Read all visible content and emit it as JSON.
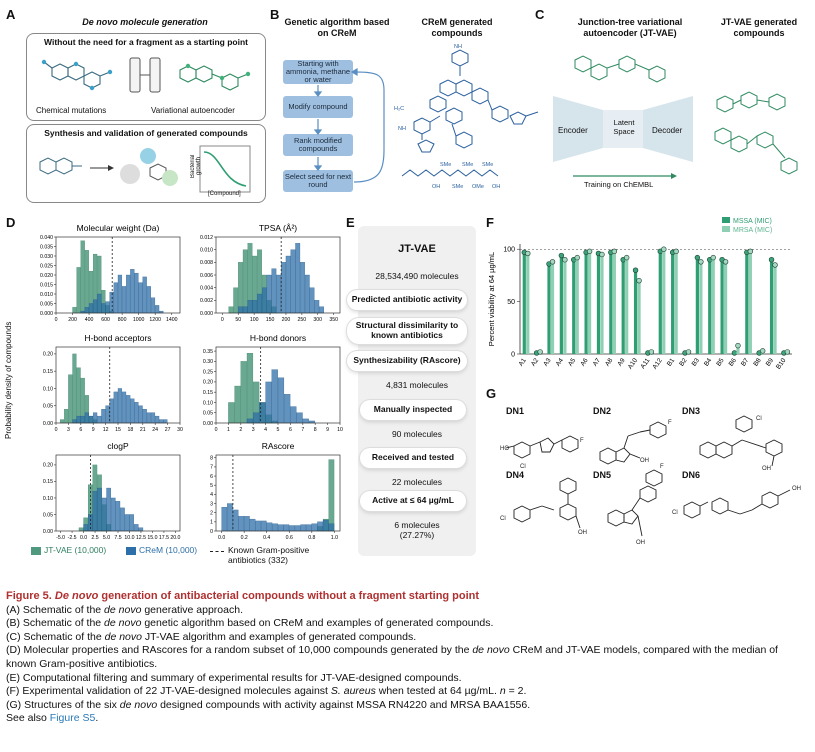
{
  "panelA": {
    "label": "A",
    "title": "De novo molecule generation",
    "box1_title": "Without the need for a fragment as a starting point",
    "chem_mut": "Chemical mutations",
    "vae": "Variational autoencoder",
    "box2_title": "Synthesis and validation of generated compounds",
    "growth_y": "Bacterial growth",
    "growth_x": "[Compound]"
  },
  "panelB": {
    "label": "B",
    "title": "Genetic algorithm based on CReM",
    "steps": [
      "Starting with ammonia, methane or water",
      "Modify compound",
      "Rank modified compounds",
      "Select seed for next round"
    ],
    "gen_title": "CReM generated compounds"
  },
  "panelC": {
    "label": "C",
    "title": "Junction-tree variational autoencoder (JT-VAE)",
    "gen_title": "JT-VAE generated compounds",
    "encoder": "Encoder",
    "latent": "Latent Space",
    "decoder": "Decoder",
    "training": "Training on ChEMBL"
  },
  "panelD": {
    "label": "D",
    "ylabel": "Probability density of compounds",
    "legend": {
      "jtvae": "JT-VAE (10,000)",
      "crem": "CReM (10,000)",
      "known": "Known Gram-positive antibiotics (332)"
    }
  },
  "panelE": {
    "label": "E",
    "title": "JT-VAE",
    "items": [
      {
        "kind": "count",
        "text": "28,534,490 molecules"
      },
      {
        "kind": "step",
        "text": "Predicted antibiotic activity"
      },
      {
        "kind": "step",
        "text": "Structural dissimilarity to known antibiotics"
      },
      {
        "kind": "step",
        "text": "Synthesizability (RAscore)"
      },
      {
        "kind": "count",
        "text": "4,831 molecules"
      },
      {
        "kind": "step",
        "text": "Manually inspected"
      },
      {
        "kind": "count",
        "text": "90 molecules"
      },
      {
        "kind": "step",
        "text": "Received and tested"
      },
      {
        "kind": "count",
        "text": "22 molecules"
      },
      {
        "kind": "step",
        "text": "Active at ≤ 64 µg/mL"
      },
      {
        "kind": "count",
        "text": "6 molecules"
      },
      {
        "kind": "count",
        "text": "(27.27%)"
      }
    ]
  },
  "panelF": {
    "label": "F"
  },
  "panelG": {
    "label": "G",
    "names": [
      "DN1",
      "DN2",
      "DN3",
      "DN4",
      "DN5",
      "DN6"
    ]
  },
  "chart_data": [
    {
      "type": "histogram",
      "title": "Molecular weight (Da)",
      "xlim": [
        0,
        1500
      ],
      "ylim": [
        0,
        0.04
      ],
      "xticks": [
        "0",
        "200",
        "400",
        "600",
        "800",
        "1000",
        "1200",
        "1400"
      ],
      "yticks": [
        "0.000",
        "0.005",
        "0.010",
        "0.015",
        "0.020",
        "0.025",
        "0.030",
        "0.035",
        "0.040"
      ],
      "bin_edges": [
        200,
        250,
        300,
        350,
        400,
        450,
        500,
        550,
        600,
        650,
        700,
        750,
        800,
        850,
        900,
        950,
        1000,
        1050,
        1100,
        1150,
        1200,
        1250,
        1300
      ],
      "jtvae": [
        0.003,
        0.024,
        0.038,
        0.033,
        0.022,
        0.031,
        0.03,
        0.012,
        0.004,
        0.001,
        0,
        0,
        0,
        0,
        0,
        0,
        0,
        0,
        0,
        0,
        0,
        0
      ],
      "crem": [
        0,
        0,
        0.001,
        0.003,
        0.005,
        0.007,
        0.01,
        0.005,
        0.006,
        0.011,
        0.016,
        0.02,
        0.014,
        0.02,
        0.023,
        0.021,
        0.016,
        0.019,
        0.014,
        0.008,
        0.004,
        0.001
      ],
      "known_median": 680
    },
    {
      "type": "histogram",
      "title": "TPSA (Å²)",
      "xlim": [
        -20,
        370
      ],
      "ylim": [
        0,
        0.012
      ],
      "xticks": [
        "0",
        "50",
        "100",
        "150",
        "200",
        "250",
        "300",
        "350"
      ],
      "yticks": [
        "0.000",
        "0.002",
        "0.004",
        "0.006",
        "0.008",
        "0.010",
        "0.012"
      ],
      "bin_edges": [
        20,
        35,
        50,
        65,
        80,
        95,
        110,
        125,
        140,
        155,
        170,
        185,
        200,
        215,
        230,
        245,
        260,
        275,
        290,
        305,
        320
      ],
      "jtvae": [
        0.001,
        0.004,
        0.008,
        0.01,
        0.011,
        0.009,
        0.01,
        0.006,
        0.002,
        0.001,
        0,
        0,
        0,
        0,
        0,
        0,
        0,
        0,
        0,
        0
      ],
      "crem": [
        0,
        0,
        0.001,
        0.001,
        0.002,
        0.002,
        0.003,
        0.004,
        0.006,
        0.007,
        0.006,
        0.008,
        0.009,
        0.01,
        0.011,
        0.008,
        0.006,
        0.004,
        0.002,
        0.001
      ],
      "known_median": 185
    },
    {
      "type": "histogram",
      "title": "H-bond acceptors",
      "xlim": [
        0,
        30
      ],
      "ylim": [
        0,
        0.22
      ],
      "xticks": [
        "0",
        "3",
        "6",
        "9",
        "12",
        "15",
        "18",
        "21",
        "24",
        "27",
        "30"
      ],
      "yticks": [
        "0.00",
        "0.05",
        "0.10",
        "0.15",
        "0.20"
      ],
      "bin_edges": [
        1,
        2,
        3,
        4,
        5,
        6,
        7,
        8,
        9,
        10,
        11,
        12,
        13,
        14,
        15,
        16,
        17,
        18,
        19,
        20,
        21,
        22,
        23,
        24,
        25,
        26,
        27
      ],
      "jtvae": [
        0.01,
        0.04,
        0.14,
        0.2,
        0.16,
        0.13,
        0.08,
        0.02,
        0.01,
        0,
        0,
        0,
        0,
        0,
        0,
        0,
        0,
        0,
        0,
        0,
        0,
        0,
        0,
        0,
        0,
        0
      ],
      "crem": [
        0,
        0,
        0,
        0.01,
        0.02,
        0.02,
        0.03,
        0.02,
        0.03,
        0.02,
        0.04,
        0.05,
        0.07,
        0.09,
        0.1,
        0.09,
        0.08,
        0.07,
        0.06,
        0.05,
        0.04,
        0.03,
        0.03,
        0.02,
        0.01,
        0.01
      ],
      "known_median": 13
    },
    {
      "type": "histogram",
      "title": "H-bond donors",
      "xlim": [
        0,
        10
      ],
      "ylim": [
        0,
        0.37
      ],
      "xticks": [
        "0",
        "1",
        "2",
        "3",
        "4",
        "5",
        "6",
        "7",
        "8",
        "9",
        "10"
      ],
      "yticks": [
        "0.00",
        "0.05",
        "0.10",
        "0.15",
        "0.20",
        "0.25",
        "0.30",
        "0.35"
      ],
      "bin_edges": [
        1,
        1.5,
        2,
        2.5,
        3,
        3.5,
        4,
        4.5,
        5,
        5.5,
        6,
        6.5,
        7,
        7.5,
        8
      ],
      "jtvae": [
        0.1,
        0.18,
        0.3,
        0.34,
        0.2,
        0.1,
        0.04,
        0.01,
        0,
        0,
        0,
        0,
        0,
        0
      ],
      "crem": [
        0,
        0,
        0,
        0.02,
        0.05,
        0.1,
        0.2,
        0.26,
        0.22,
        0.14,
        0.08,
        0.05,
        0.02,
        0.01
      ],
      "known_median": 3.6
    },
    {
      "type": "histogram",
      "title": "clogP",
      "xlim": [
        -6,
        21
      ],
      "ylim": [
        0,
        0.23
      ],
      "xticks": [
        "-5.0",
        "-2.5",
        "0.0",
        "2.5",
        "5.0",
        "7.5",
        "10.0",
        "12.5",
        "15.0",
        "17.5",
        "20.0"
      ],
      "yticks": [
        "0.00",
        "0.05",
        "0.10",
        "0.15",
        "0.20"
      ],
      "bin_edges": [
        -1,
        0,
        1,
        2,
        3,
        4,
        5,
        6,
        7,
        8,
        9,
        10,
        11,
        12,
        13,
        14
      ],
      "jtvae": [
        0.01,
        0.04,
        0.14,
        0.2,
        0.17,
        0.08,
        0.02,
        0,
        0,
        0,
        0,
        0,
        0,
        0,
        0
      ],
      "crem": [
        0,
        0.02,
        0.05,
        0.12,
        0.13,
        0.1,
        0.13,
        0.1,
        0.09,
        0.07,
        0.05,
        0.05,
        0.02,
        0.01,
        0
      ],
      "known_median": 1.5
    },
    {
      "type": "histogram",
      "title": "RAscore",
      "xlim": [
        -0.05,
        1.05
      ],
      "ylim": [
        0,
        8.3
      ],
      "xticks": [
        "0.0",
        "0.2",
        "0.4",
        "0.6",
        "0.8",
        "1.0"
      ],
      "yticks": [
        "0",
        "1",
        "2",
        "3",
        "4",
        "5",
        "6",
        "7",
        "8"
      ],
      "bin_edges": [
        0,
        0.05,
        0.1,
        0.15,
        0.2,
        0.25,
        0.3,
        0.35,
        0.4,
        0.45,
        0.5,
        0.55,
        0.6,
        0.65,
        0.7,
        0.75,
        0.8,
        0.85,
        0.9,
        0.95,
        1.0
      ],
      "jtvae": [
        0,
        0,
        0,
        0,
        0,
        0,
        0,
        0,
        0,
        0,
        0,
        0,
        0,
        0,
        0,
        0,
        0,
        0.5,
        1.3,
        7.8
      ],
      "crem": [
        2.6,
        3.0,
        2.3,
        1.6,
        1.6,
        1.3,
        1.1,
        1.1,
        0.9,
        0.8,
        0.7,
        0.7,
        0.6,
        0.6,
        0.7,
        0.7,
        0.8,
        1.0,
        1.2,
        0.8
      ],
      "known_median": 0.1
    },
    {
      "type": "bar",
      "title": "",
      "ylabel": "Percent viability at 64 µg/mL",
      "ylim": [
        0,
        105
      ],
      "yticks": [
        "0",
        "50",
        "100"
      ],
      "categories": [
        "A1",
        "A2",
        "A3",
        "A4",
        "A5",
        "A6",
        "A7",
        "A8",
        "A9",
        "A10",
        "A11",
        "A12",
        "B1",
        "B2",
        "B3",
        "B4",
        "B5",
        "B6",
        "B7",
        "B8",
        "B9",
        "B10"
      ],
      "series": [
        {
          "name": "MSSA (MIC)",
          "values": [
            97,
            1,
            86,
            94,
            90,
            97,
            96,
            97,
            90,
            80,
            1,
            98,
            97,
            1,
            92,
            90,
            90,
            1,
            97,
            1,
            90,
            1
          ]
        },
        {
          "name": "MRSA (MIC)",
          "values": [
            96,
            2,
            88,
            90,
            92,
            98,
            95,
            98,
            92,
            70,
            2,
            100,
            98,
            2,
            88,
            92,
            88,
            8,
            98,
            3,
            85,
            2
          ]
        }
      ]
    }
  ],
  "caption": {
    "fig": "Figure 5.",
    "title_italic": "De novo",
    "title_rest": "generation of antibacterial compounds without a fragment starting point",
    "lineA_pre": "(A) Schematic of the ",
    "lineA_it": "de novo",
    "lineA_post": " generative approach.",
    "lineB_pre": "(B) Schematic of the ",
    "lineB_it": "de novo",
    "lineB_post": " genetic algorithm based on CReM and examples of generated compounds.",
    "lineC_pre": "(C) Schematic of the ",
    "lineC_it": "de novo",
    "lineC_post": " JT-VAE algorithm and examples of generated compounds.",
    "lineD_pre": "(D) Molecular properties and RAscores for a random subset of 10,000 compounds generated by the ",
    "lineD_it": "de novo",
    "lineD_post": " CReM and JT-VAE models, compared with the median of known Gram-positive antibiotics.",
    "lineE": "(E) Computational filtering and summary of experimental results for JT-VAE-designed compounds.",
    "lineF_pre": "(F) Experimental validation of 22 JT-VAE-designed molecules against ",
    "lineF_it": "S. aureus",
    "lineF_post": " when tested at 64 µg/mL. ",
    "lineF_n": "n",
    "lineF_end": " = 2.",
    "lineG_pre": "(G) Structures of the six ",
    "lineG_it": "de novo",
    "lineG_post": " designed compounds with activity against MSSA RN4220 and MRSA BAA1556.",
    "see_pre": "See also ",
    "see_link": "Figure S5",
    "see_post": "."
  },
  "colors": {
    "jtvae": "#4f9a7e",
    "crem": "#2d6fa8",
    "mssa": "#2f9e72",
    "mrsa": "#8fcfb3",
    "flow": "#9fbfe0"
  }
}
